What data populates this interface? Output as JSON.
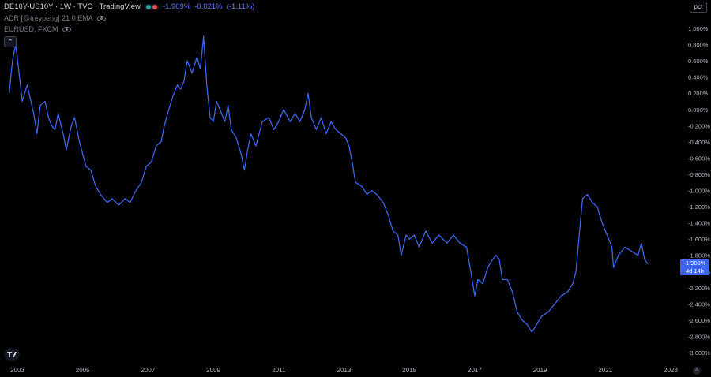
{
  "legend": {
    "symbol": "DE10Y-US10Y · 1W · TVC · TradingView",
    "last_change_pct_1": "-1.909%",
    "last_change_abs": "-0.021%",
    "last_change_pct_2": "(-1.11%)",
    "indicator_1": "ADR [@treypeng] 21 0 EMA",
    "indicator_2": "EURUSD, FXCM"
  },
  "scale_button": "pct",
  "collapse_icon": "chevron-up-icon",
  "price_badge": {
    "value": "-1.909%",
    "countdown": "4d 14h"
  },
  "colors": {
    "line": "#3d64ee",
    "background": "#000000",
    "badge": "#3d64ee",
    "axis_text": "#b2b5be"
  },
  "auto_button": "A",
  "chart_data": {
    "type": "line",
    "title": "",
    "xlabel": "",
    "ylabel": "",
    "x_ticks": [
      "2003",
      "2005",
      "2007",
      "2009",
      "2011",
      "2013",
      "2015",
      "2017",
      "2019",
      "2021",
      "2023"
    ],
    "y_ticks": [
      "1.000%",
      "0.800%",
      "0.600%",
      "0.400%",
      "0.200%",
      "0.000%",
      "-0.200%",
      "-0.400%",
      "-0.600%",
      "-0.800%",
      "-1.000%",
      "-1.200%",
      "-1.400%",
      "-1.600%",
      "-1.800%",
      "-2.000%",
      "-2.200%",
      "-2.400%",
      "-2.600%",
      "-2.800%",
      "-3.000%"
    ],
    "ylim": [
      -3.0,
      1.0
    ],
    "xlim": [
      2002.75,
      2023.0
    ],
    "grid": false,
    "series": [
      {
        "values": [
          [
            2002.75,
            0.2
          ],
          [
            2002.85,
            0.6
          ],
          [
            2002.95,
            0.8
          ],
          [
            2003.05,
            0.45
          ],
          [
            2003.15,
            0.1
          ],
          [
            2003.3,
            0.3
          ],
          [
            2003.5,
            -0.05
          ],
          [
            2003.6,
            -0.3
          ],
          [
            2003.7,
            0.05
          ],
          [
            2003.85,
            0.1
          ],
          [
            2003.95,
            -0.1
          ],
          [
            2004.05,
            -0.2
          ],
          [
            2004.15,
            -0.25
          ],
          [
            2004.25,
            -0.05
          ],
          [
            2004.4,
            -0.3
          ],
          [
            2004.5,
            -0.5
          ],
          [
            2004.65,
            -0.2
          ],
          [
            2004.75,
            -0.1
          ],
          [
            2004.9,
            -0.4
          ],
          [
            2005.0,
            -0.55
          ],
          [
            2005.1,
            -0.7
          ],
          [
            2005.25,
            -0.75
          ],
          [
            2005.4,
            -0.95
          ],
          [
            2005.55,
            -1.05
          ],
          [
            2005.75,
            -1.15
          ],
          [
            2005.9,
            -1.1
          ],
          [
            2006.1,
            -1.18
          ],
          [
            2006.3,
            -1.1
          ],
          [
            2006.45,
            -1.15
          ],
          [
            2006.6,
            -1.02
          ],
          [
            2006.8,
            -0.9
          ],
          [
            2006.95,
            -0.7
          ],
          [
            2007.1,
            -0.65
          ],
          [
            2007.25,
            -0.45
          ],
          [
            2007.4,
            -0.4
          ],
          [
            2007.5,
            -0.2
          ],
          [
            2007.6,
            -0.05
          ],
          [
            2007.75,
            0.15
          ],
          [
            2007.9,
            0.3
          ],
          [
            2008.0,
            0.25
          ],
          [
            2008.1,
            0.35
          ],
          [
            2008.2,
            0.6
          ],
          [
            2008.35,
            0.45
          ],
          [
            2008.5,
            0.65
          ],
          [
            2008.6,
            0.5
          ],
          [
            2008.7,
            0.9
          ],
          [
            2008.8,
            0.3
          ],
          [
            2008.9,
            -0.1
          ],
          [
            2009.0,
            -0.15
          ],
          [
            2009.1,
            0.1
          ],
          [
            2009.2,
            0.0
          ],
          [
            2009.35,
            -0.15
          ],
          [
            2009.45,
            0.05
          ],
          [
            2009.55,
            -0.25
          ],
          [
            2009.7,
            -0.35
          ],
          [
            2009.85,
            -0.55
          ],
          [
            2009.95,
            -0.75
          ],
          [
            2010.05,
            -0.5
          ],
          [
            2010.15,
            -0.3
          ],
          [
            2010.3,
            -0.45
          ],
          [
            2010.5,
            -0.15
          ],
          [
            2010.7,
            -0.1
          ],
          [
            2010.85,
            -0.25
          ],
          [
            2011.0,
            -0.15
          ],
          [
            2011.15,
            0.0
          ],
          [
            2011.35,
            -0.15
          ],
          [
            2011.5,
            -0.05
          ],
          [
            2011.65,
            -0.15
          ],
          [
            2011.8,
            0.0
          ],
          [
            2011.9,
            0.2
          ],
          [
            2012.0,
            -0.1
          ],
          [
            2012.15,
            -0.25
          ],
          [
            2012.3,
            -0.1
          ],
          [
            2012.45,
            -0.3
          ],
          [
            2012.6,
            -0.15
          ],
          [
            2012.75,
            -0.25
          ],
          [
            2012.9,
            -0.3
          ],
          [
            2013.05,
            -0.35
          ],
          [
            2013.15,
            -0.45
          ],
          [
            2013.25,
            -0.65
          ],
          [
            2013.35,
            -0.9
          ],
          [
            2013.55,
            -0.95
          ],
          [
            2013.7,
            -1.05
          ],
          [
            2013.85,
            -1.0
          ],
          [
            2014.0,
            -1.05
          ],
          [
            2014.2,
            -1.15
          ],
          [
            2014.35,
            -1.3
          ],
          [
            2014.5,
            -1.5
          ],
          [
            2014.65,
            -1.55
          ],
          [
            2014.75,
            -1.8
          ],
          [
            2014.9,
            -1.55
          ],
          [
            2015.0,
            -1.6
          ],
          [
            2015.15,
            -1.55
          ],
          [
            2015.3,
            -1.7
          ],
          [
            2015.5,
            -1.5
          ],
          [
            2015.7,
            -1.65
          ],
          [
            2015.9,
            -1.55
          ],
          [
            2016.15,
            -1.65
          ],
          [
            2016.35,
            -1.55
          ],
          [
            2016.55,
            -1.65
          ],
          [
            2016.75,
            -1.7
          ],
          [
            2016.9,
            -2.05
          ],
          [
            2017.0,
            -2.3
          ],
          [
            2017.1,
            -2.1
          ],
          [
            2017.25,
            -2.15
          ],
          [
            2017.4,
            -1.95
          ],
          [
            2017.55,
            -1.85
          ],
          [
            2017.65,
            -1.8
          ],
          [
            2017.75,
            -1.85
          ],
          [
            2017.85,
            -2.1
          ],
          [
            2018.0,
            -2.1
          ],
          [
            2018.15,
            -2.25
          ],
          [
            2018.3,
            -2.5
          ],
          [
            2018.45,
            -2.6
          ],
          [
            2018.6,
            -2.65
          ],
          [
            2018.75,
            -2.75
          ],
          [
            2018.9,
            -2.65
          ],
          [
            2019.05,
            -2.55
          ],
          [
            2019.25,
            -2.5
          ],
          [
            2019.45,
            -2.4
          ],
          [
            2019.65,
            -2.3
          ],
          [
            2019.85,
            -2.25
          ],
          [
            2020.0,
            -2.15
          ],
          [
            2020.1,
            -2.0
          ],
          [
            2020.2,
            -1.55
          ],
          [
            2020.3,
            -1.1
          ],
          [
            2020.45,
            -1.05
          ],
          [
            2020.6,
            -1.15
          ],
          [
            2020.75,
            -1.2
          ],
          [
            2020.9,
            -1.4
          ],
          [
            2021.05,
            -1.55
          ],
          [
            2021.2,
            -1.7
          ],
          [
            2021.25,
            -1.95
          ],
          [
            2021.4,
            -1.8
          ],
          [
            2021.6,
            -1.7
          ],
          [
            2021.8,
            -1.75
          ],
          [
            2022.0,
            -1.8
          ],
          [
            2022.1,
            -1.65
          ],
          [
            2022.2,
            -1.85
          ],
          [
            2022.3,
            -1.909
          ]
        ]
      }
    ]
  }
}
